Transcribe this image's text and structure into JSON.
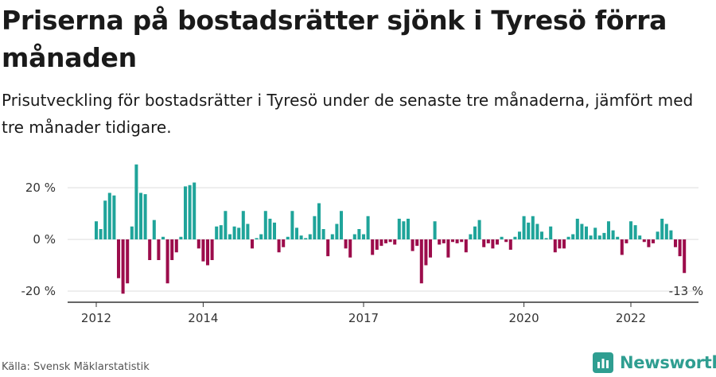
{
  "header": {
    "title": "Priserna på bostadsrätter sjönk i Tyresö förra månaden",
    "subtitle": "Prisutveckling för bostadsrätter i Tyresö under de senaste tre månaderna, jämfört med tre månader tidigare."
  },
  "footer": {
    "source": "Källa: Svensk Mäklarstatistik",
    "brand": "Newsworthy"
  },
  "colors": {
    "positive": "#1fa49a",
    "negative": "#9c0c4b",
    "grid": "#dddddd",
    "axis": "#333333"
  },
  "chart_data": {
    "type": "bar",
    "title": "Priserna på bostadsrätter sjönk i Tyresö förra månaden",
    "subtitle": "Prisutveckling för bostadsrätter i Tyresö under de senaste tre månaderna, jämfört med tre månader tidigare.",
    "xlabel": "",
    "ylabel": "",
    "ylim": [
      -22,
      30
    ],
    "yticks": [
      20,
      0,
      -20
    ],
    "ytick_labels": [
      "20 %",
      "0 %",
      "-20 %"
    ],
    "xticks": [
      2012,
      2014,
      2017,
      2020,
      2022
    ],
    "xtick_labels": [
      "2012",
      "2014",
      "2017",
      "2020",
      "2022"
    ],
    "start": "2012-01",
    "unit": "%",
    "last_label": "-13 %",
    "values": [
      7,
      4,
      15,
      18,
      17,
      -15,
      -21,
      -17,
      5,
      29,
      18,
      17.5,
      -8,
      7.5,
      -8,
      1,
      -17,
      -8,
      -5,
      1,
      20.5,
      21,
      22,
      -3.5,
      -8.5,
      -10,
      -8,
      5,
      5.5,
      11,
      2,
      5,
      4.5,
      11,
      6,
      -3.5,
      0.5,
      2,
      11,
      8,
      6.5,
      -5,
      -3,
      1,
      11,
      4.5,
      1.5,
      0.5,
      2,
      9,
      14,
      4,
      -6.5,
      2,
      6,
      11,
      -3.5,
      -7,
      2,
      4,
      2,
      9,
      -6,
      -4,
      -2.5,
      -1.5,
      -1,
      -2,
      8,
      7,
      8,
      -4.5,
      -2.5,
      -17,
      -10,
      -7,
      7,
      -2,
      -1.5,
      -7,
      -1,
      -1.5,
      -1,
      -5,
      2,
      5,
      7.5,
      -3,
      -1.5,
      -3.5,
      -2,
      1,
      -1,
      -4,
      1,
      3,
      9,
      6.5,
      9,
      6,
      3,
      0.5,
      5,
      -5,
      -3.5,
      -3.5,
      1,
      2,
      8,
      6,
      5,
      1.5,
      4.5,
      1.5,
      2.5,
      7,
      3.5,
      1,
      -6,
      -1.5,
      7,
      5.5,
      1.5,
      -1,
      -3,
      -1.5,
      3,
      8,
      6,
      3.5,
      -3,
      -6.5,
      -13
    ]
  }
}
